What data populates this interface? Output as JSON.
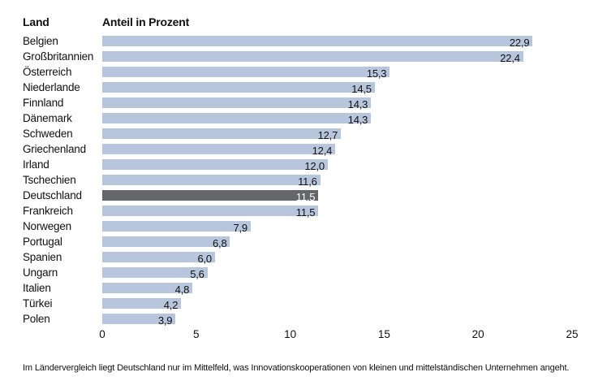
{
  "header": {
    "col_land": "Land",
    "col_anteil": "Anteil in Prozent"
  },
  "chart_data": {
    "type": "bar",
    "orientation": "horizontal",
    "title": "",
    "xlabel": "Anteil in Prozent",
    "ylabel": "Land",
    "categories": [
      "Belgien",
      "Großbritannien",
      "Österreich",
      "Niederlande",
      "Finnland",
      "Dänemark",
      "Schweden",
      "Griechenland",
      "Irland",
      "Tschechien",
      "Deutschland",
      "Frankreich",
      "Norwegen",
      "Portugal",
      "Spanien",
      "Ungarn",
      "Italien",
      "Türkei",
      "Polen"
    ],
    "values": [
      22.9,
      22.4,
      15.3,
      14.5,
      14.3,
      14.3,
      12.7,
      12.4,
      12.0,
      11.6,
      11.5,
      11.5,
      7.9,
      6.8,
      6.0,
      5.6,
      4.8,
      4.2,
      3.9
    ],
    "value_labels": [
      "22,9",
      "22,4",
      "15,3",
      "14,5",
      "14,3",
      "14,3",
      "12,7",
      "12,4",
      "12,0",
      "11,6",
      "11,5",
      "11,5",
      "7,9",
      "6,8",
      "6,0",
      "5,6",
      "4,8",
      "4,2",
      "3,9"
    ],
    "highlighted_category": "Deutschland",
    "highlight_index": 10,
    "xlim": [
      0,
      25
    ],
    "xticks": [
      0,
      5,
      10,
      15,
      20,
      25
    ],
    "grid": false,
    "legend": "none",
    "colors": {
      "bar": "#b7c6dc",
      "bar_highlight": "#656669",
      "value_text": "#111111",
      "value_text_highlight": "#ffffff"
    }
  },
  "caption": "Im Ländervergleich liegt Deutschland nur im Mittelfeld, was Innovationskooperationen von kleinen und mittelständischen Unternehmen angeht."
}
